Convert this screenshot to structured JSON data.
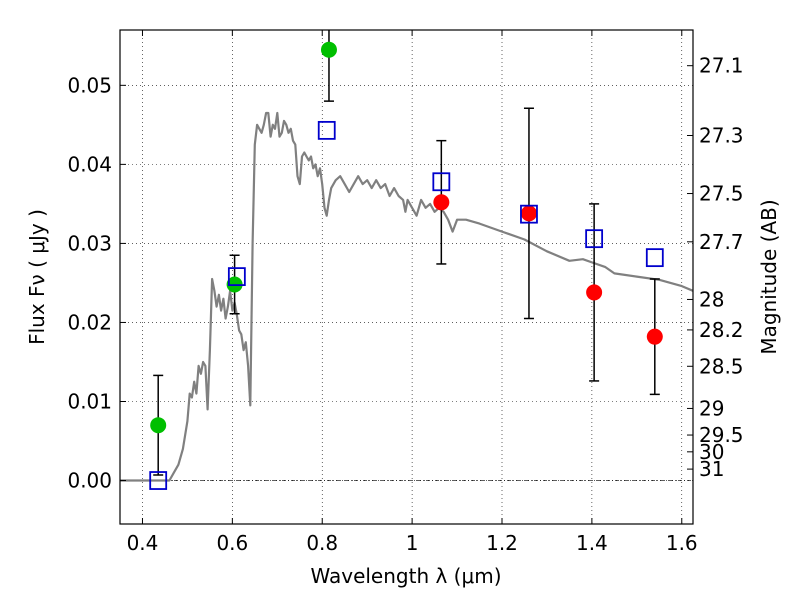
{
  "chart_data": {
    "type": "scatter",
    "xlabel": "Wavelength  λ (μm)",
    "ylabel": "Flux  Fν  ( μJy )",
    "y2label": "Magnitude (AB)",
    "xlim": [
      0.35,
      1.625
    ],
    "ylim": [
      -0.0055,
      0.057
    ],
    "grid": true,
    "x_ticks": [
      {
        "value": 0.4,
        "label": "0.4"
      },
      {
        "value": 0.6,
        "label": "0.6"
      },
      {
        "value": 0.8,
        "label": "0.8"
      },
      {
        "value": 1.0,
        "label": "1"
      },
      {
        "value": 1.2,
        "label": "1.2"
      },
      {
        "value": 1.4,
        "label": "1.4"
      },
      {
        "value": 1.6,
        "label": "1.6"
      }
    ],
    "y_ticks": [
      {
        "value": 0.0,
        "label": "0.00"
      },
      {
        "value": 0.01,
        "label": "0.01"
      },
      {
        "value": 0.02,
        "label": "0.02"
      },
      {
        "value": 0.03,
        "label": "0.03"
      },
      {
        "value": 0.04,
        "label": "0.04"
      },
      {
        "value": 0.05,
        "label": "0.05"
      }
    ],
    "y2_ticks": [
      {
        "value": 27.1,
        "label": "27.1"
      },
      {
        "value": 27.3,
        "label": "27.3"
      },
      {
        "value": 27.5,
        "label": "27.5"
      },
      {
        "value": 27.7,
        "label": "27.7"
      },
      {
        "value": 28.0,
        "label": "28"
      },
      {
        "value": 28.2,
        "label": "28.2"
      },
      {
        "value": 28.5,
        "label": "28.5"
      },
      {
        "value": 29.0,
        "label": "29"
      },
      {
        "value": 29.5,
        "label": "29.5"
      },
      {
        "value": 30.0,
        "label": "30"
      },
      {
        "value": 31.0,
        "label": "31"
      }
    ],
    "series": [
      {
        "kind": "line",
        "color": "#808080",
        "points": [
          [
            0.35,
            0.0
          ],
          [
            0.46,
            0.0
          ],
          [
            0.47,
            0.001
          ],
          [
            0.48,
            0.002
          ],
          [
            0.49,
            0.004
          ],
          [
            0.5,
            0.0075
          ],
          [
            0.505,
            0.011
          ],
          [
            0.51,
            0.0105
          ],
          [
            0.515,
            0.0125
          ],
          [
            0.52,
            0.011
          ],
          [
            0.525,
            0.0145
          ],
          [
            0.53,
            0.0135
          ],
          [
            0.535,
            0.015
          ],
          [
            0.54,
            0.0145
          ],
          [
            0.545,
            0.009
          ],
          [
            0.55,
            0.0165
          ],
          [
            0.555,
            0.0255
          ],
          [
            0.56,
            0.024
          ],
          [
            0.565,
            0.022
          ],
          [
            0.57,
            0.0235
          ],
          [
            0.575,
            0.0215
          ],
          [
            0.58,
            0.023
          ],
          [
            0.585,
            0.0205
          ],
          [
            0.59,
            0.022
          ],
          [
            0.595,
            0.024
          ],
          [
            0.6,
            0.0215
          ],
          [
            0.605,
            0.0225
          ],
          [
            0.61,
            0.021
          ],
          [
            0.615,
            0.019
          ],
          [
            0.62,
            0.0185
          ],
          [
            0.625,
            0.0165
          ],
          [
            0.63,
            0.0175
          ],
          [
            0.635,
            0.0145
          ],
          [
            0.64,
            0.0095
          ],
          [
            0.645,
            0.03
          ],
          [
            0.65,
            0.0425
          ],
          [
            0.655,
            0.045
          ],
          [
            0.66,
            0.0445
          ],
          [
            0.665,
            0.044
          ],
          [
            0.67,
            0.045
          ],
          [
            0.675,
            0.0465
          ],
          [
            0.68,
            0.0465
          ],
          [
            0.685,
            0.0435
          ],
          [
            0.69,
            0.045
          ],
          [
            0.695,
            0.0445
          ],
          [
            0.7,
            0.0465
          ],
          [
            0.705,
            0.0435
          ],
          [
            0.71,
            0.044
          ],
          [
            0.715,
            0.0455
          ],
          [
            0.72,
            0.045
          ],
          [
            0.725,
            0.044
          ],
          [
            0.73,
            0.0445
          ],
          [
            0.735,
            0.043
          ],
          [
            0.74,
            0.0425
          ],
          [
            0.745,
            0.0385
          ],
          [
            0.75,
            0.0375
          ],
          [
            0.755,
            0.041
          ],
          [
            0.76,
            0.0415
          ],
          [
            0.765,
            0.041
          ],
          [
            0.77,
            0.0405
          ],
          [
            0.775,
            0.041
          ],
          [
            0.78,
            0.0395
          ],
          [
            0.785,
            0.04
          ],
          [
            0.79,
            0.0385
          ],
          [
            0.795,
            0.0395
          ],
          [
            0.8,
            0.0375
          ],
          [
            0.805,
            0.0345
          ],
          [
            0.81,
            0.0335
          ],
          [
            0.815,
            0.0355
          ],
          [
            0.82,
            0.037
          ],
          [
            0.83,
            0.038
          ],
          [
            0.84,
            0.0385
          ],
          [
            0.85,
            0.0375
          ],
          [
            0.86,
            0.0365
          ],
          [
            0.87,
            0.0375
          ],
          [
            0.88,
            0.0385
          ],
          [
            0.89,
            0.0375
          ],
          [
            0.9,
            0.038
          ],
          [
            0.91,
            0.037
          ],
          [
            0.92,
            0.038
          ],
          [
            0.93,
            0.037
          ],
          [
            0.94,
            0.0375
          ],
          [
            0.95,
            0.036
          ],
          [
            0.96,
            0.037
          ],
          [
            0.97,
            0.036
          ],
          [
            0.98,
            0.0355
          ],
          [
            0.985,
            0.034
          ],
          [
            0.99,
            0.0355
          ],
          [
            1.0,
            0.0345
          ],
          [
            1.01,
            0.0335
          ],
          [
            1.02,
            0.0355
          ],
          [
            1.03,
            0.0345
          ],
          [
            1.04,
            0.035
          ],
          [
            1.05,
            0.034
          ],
          [
            1.06,
            0.0345
          ],
          [
            1.07,
            0.034
          ],
          [
            1.08,
            0.033
          ],
          [
            1.09,
            0.0315
          ],
          [
            1.1,
            0.033
          ],
          [
            1.12,
            0.033
          ],
          [
            1.15,
            0.0325
          ],
          [
            1.2,
            0.0315
          ],
          [
            1.25,
            0.0305
          ],
          [
            1.3,
            0.029
          ],
          [
            1.35,
            0.0278
          ],
          [
            1.38,
            0.028
          ],
          [
            1.4,
            0.0276
          ],
          [
            1.43,
            0.027
          ],
          [
            1.45,
            0.0262
          ],
          [
            1.5,
            0.0258
          ],
          [
            1.55,
            0.0254
          ],
          [
            1.6,
            0.0246
          ],
          [
            1.625,
            0.024
          ]
        ]
      },
      {
        "kind": "points",
        "marker": "circle",
        "color": "#00bf00",
        "points": [
          [
            0.435,
            0.007
          ],
          [
            0.605,
            0.0248
          ],
          [
            0.815,
            0.0545
          ]
        ],
        "errors": [
          0.0063,
          0.0037,
          0.0065
        ]
      },
      {
        "kind": "points",
        "marker": "circle",
        "color": "#ff0000",
        "points": [
          [
            1.065,
            0.0352
          ],
          [
            1.26,
            0.0338
          ],
          [
            1.405,
            0.0238
          ],
          [
            1.54,
            0.0182
          ]
        ],
        "errors": [
          0.0078,
          0.0133,
          0.0112,
          0.0073
        ]
      },
      {
        "kind": "points",
        "marker": "square",
        "color": "#0000cc",
        "points": [
          [
            0.435,
            0.0
          ],
          [
            0.61,
            0.0258
          ],
          [
            0.81,
            0.0443
          ],
          [
            1.065,
            0.0378
          ],
          [
            1.26,
            0.0337
          ],
          [
            1.405,
            0.0306
          ],
          [
            1.54,
            0.0282
          ]
        ]
      }
    ]
  }
}
